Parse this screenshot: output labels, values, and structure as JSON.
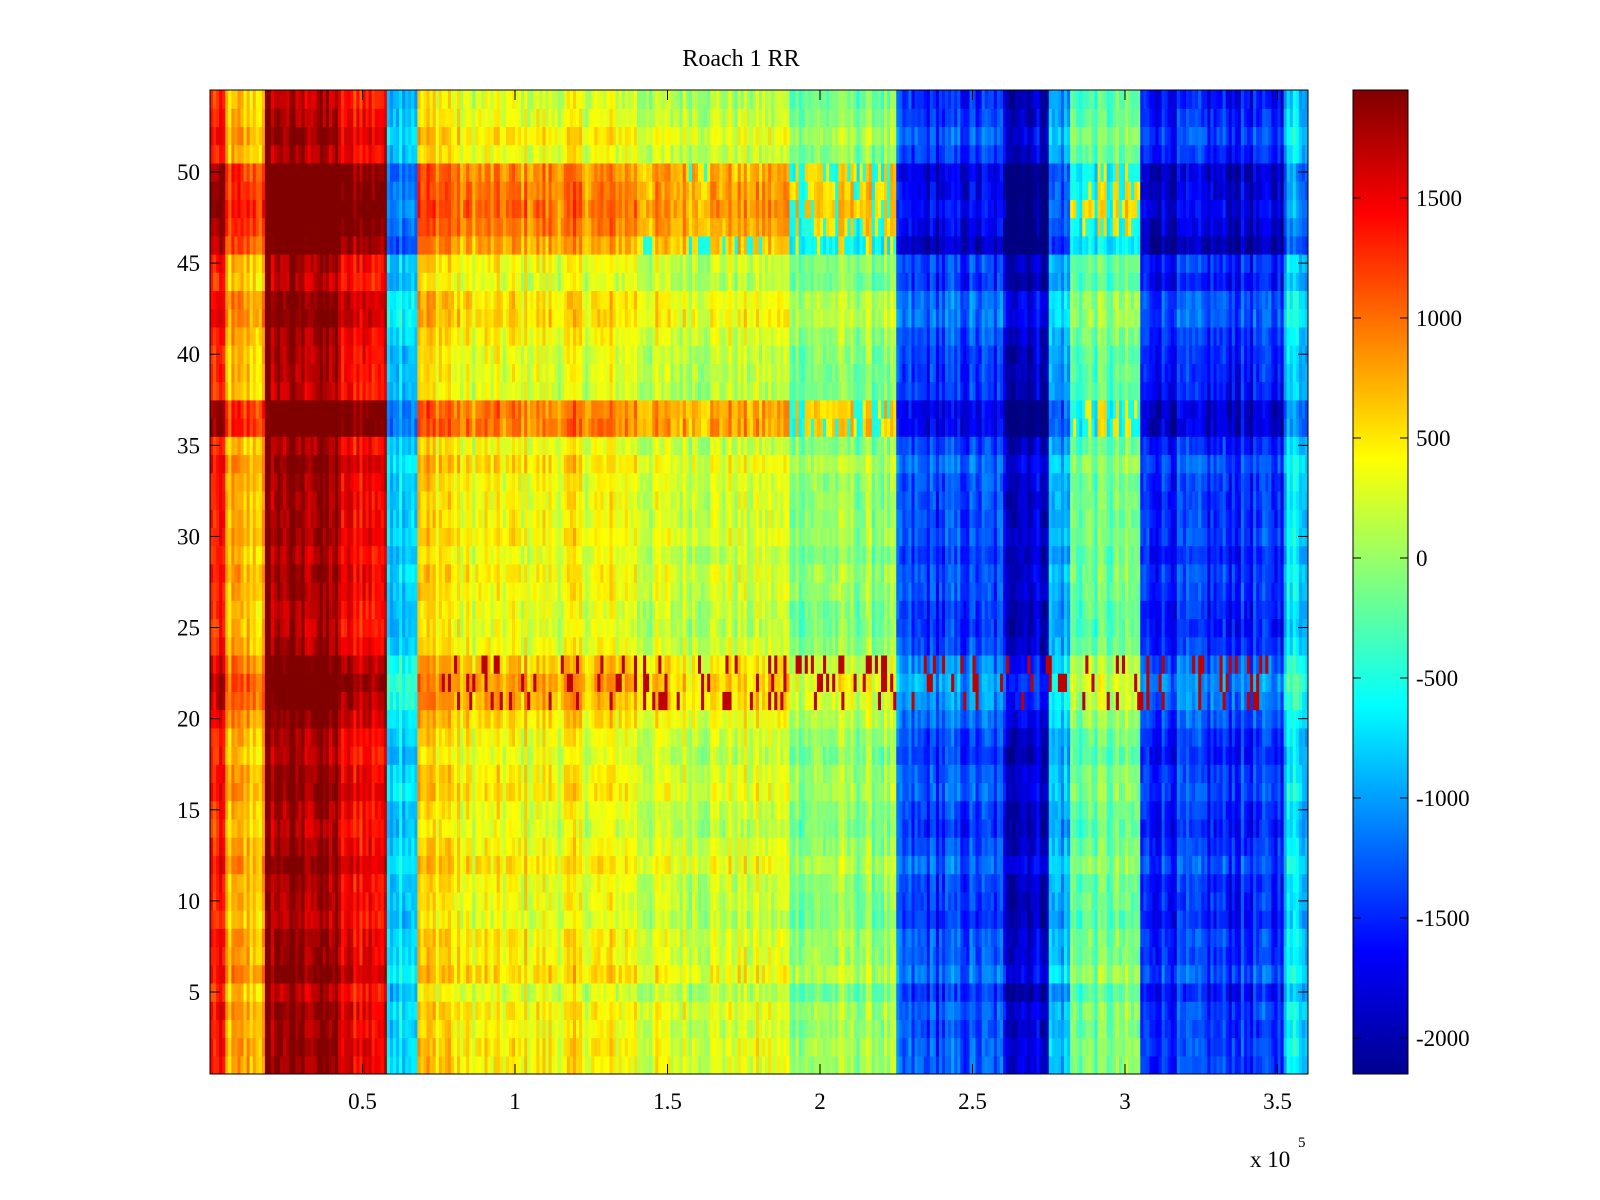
{
  "chart_data": {
    "type": "heatmap",
    "title": "Roach 1 RR",
    "xlabel": "",
    "ylabel": "",
    "colormap": "jet",
    "x_exponent_label": {
      "base": "x 10",
      "power": "5"
    },
    "x_ticks": [
      {
        "value": 0.5,
        "label": "0.5"
      },
      {
        "value": 1,
        "label": "1"
      },
      {
        "value": 1.5,
        "label": "1.5"
      },
      {
        "value": 2,
        "label": "2"
      },
      {
        "value": 2.5,
        "label": "2.5"
      },
      {
        "value": 3,
        "label": "3"
      },
      {
        "value": 3.5,
        "label": "3.5"
      }
    ],
    "y_ticks": [
      {
        "value": 5,
        "label": "5"
      },
      {
        "value": 10,
        "label": "10"
      },
      {
        "value": 15,
        "label": "15"
      },
      {
        "value": 20,
        "label": "20"
      },
      {
        "value": 25,
        "label": "25"
      },
      {
        "value": 30,
        "label": "30"
      },
      {
        "value": 35,
        "label": "35"
      },
      {
        "value": 40,
        "label": "40"
      },
      {
        "value": 45,
        "label": "45"
      },
      {
        "value": 50,
        "label": "50"
      }
    ],
    "colorbar_ticks": [
      {
        "value": 1500,
        "label": "1500"
      },
      {
        "value": 1000,
        "label": "1000"
      },
      {
        "value": 500,
        "label": "500"
      },
      {
        "value": 0,
        "label": "0"
      },
      {
        "value": -500,
        "label": "-500"
      },
      {
        "value": -1000,
        "label": "-1000"
      },
      {
        "value": -1500,
        "label": "-1500"
      },
      {
        "value": -2000,
        "label": "-2000"
      }
    ],
    "xlim": [
      0,
      3.6
    ],
    "ylim": [
      0.5,
      54.5
    ],
    "clim": [
      -2150,
      1950
    ],
    "rows": 54,
    "x_segments": [
      {
        "x": [
          0.0,
          0.05
        ],
        "value": 1300
      },
      {
        "x": [
          0.05,
          0.18
        ],
        "value": 700
      },
      {
        "x": [
          0.18,
          0.42
        ],
        "value": 1850
      },
      {
        "x": [
          0.42,
          0.58
        ],
        "value": 1500
      },
      {
        "x": [
          0.58,
          0.68
        ],
        "value": -650
      },
      {
        "x": [
          0.68,
          0.8
        ],
        "value": 600
      },
      {
        "x": [
          0.8,
          1.4
        ],
        "value": 400
      },
      {
        "x": [
          1.4,
          1.9
        ],
        "value": 250
      },
      {
        "x": [
          1.9,
          2.25
        ],
        "value": 0
      },
      {
        "x": [
          2.25,
          2.6
        ],
        "value": -1350
      },
      {
        "x": [
          2.6,
          2.75
        ],
        "value": -1750
      },
      {
        "x": [
          2.75,
          2.82
        ],
        "value": -900
      },
      {
        "x": [
          2.82,
          3.05
        ],
        "value": -150
      },
      {
        "x": [
          3.05,
          3.52
        ],
        "value": -1450
      },
      {
        "x": [
          3.52,
          3.6
        ],
        "value": -700
      }
    ],
    "row_bands": [
      {
        "rows": [
          21,
          23
        ],
        "note": "noisy row band with scattered high values"
      },
      {
        "rows": [
          36,
          37
        ],
        "note": "strong row band"
      },
      {
        "rows": [
          46,
          47
        ],
        "note": "strong row band"
      },
      {
        "rows": [
          48,
          50
        ],
        "note": "strong row band"
      }
    ]
  }
}
